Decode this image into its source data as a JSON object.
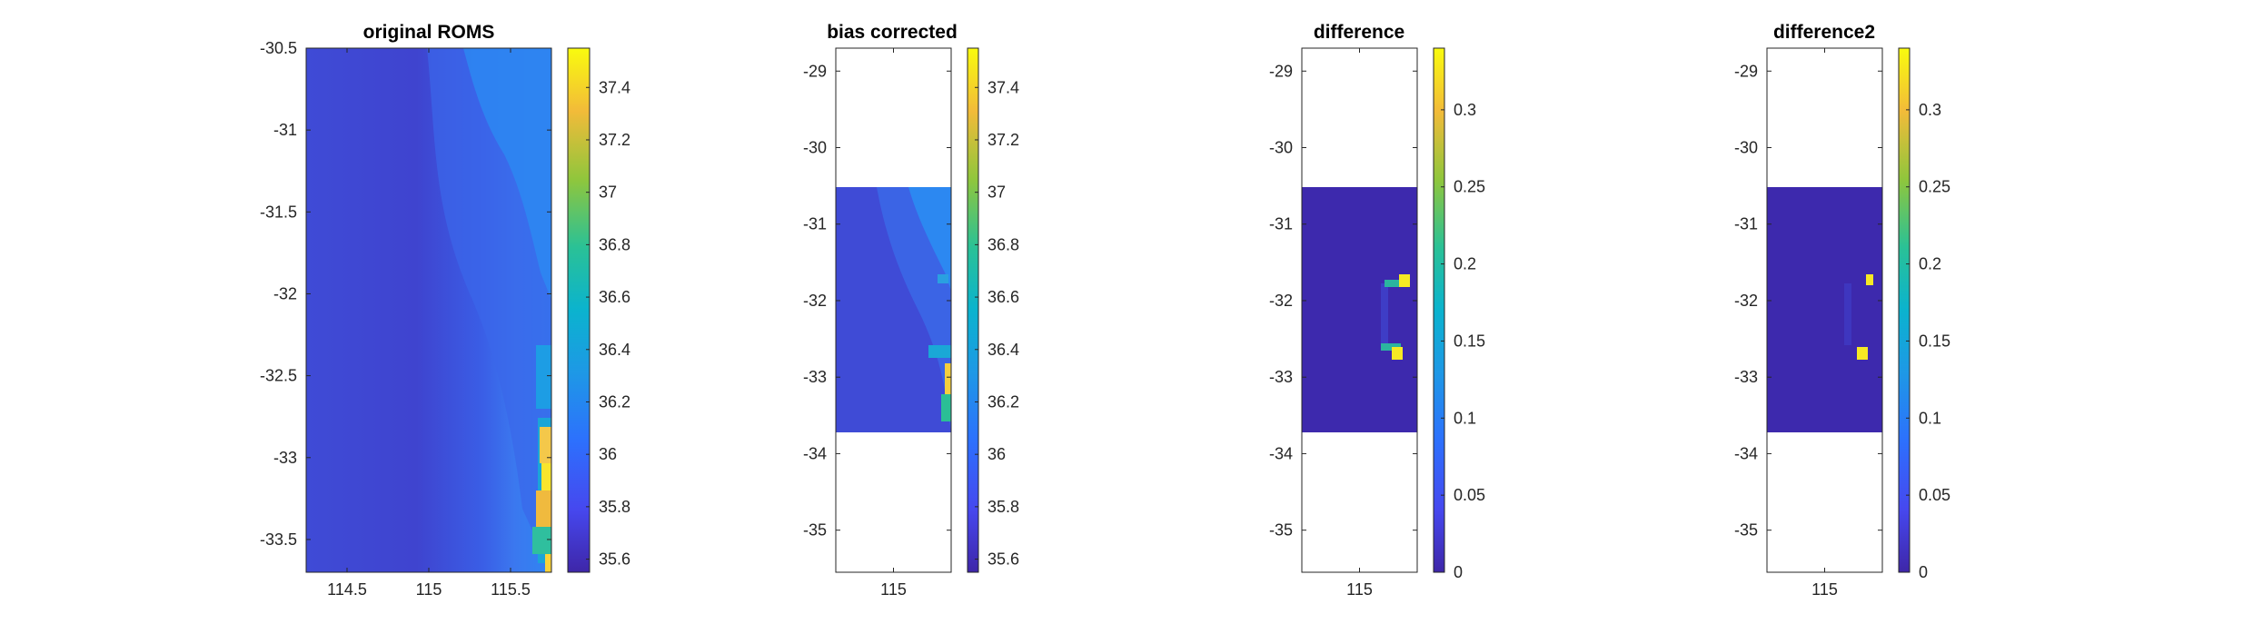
{
  "colors": {
    "axis": "#262626",
    "background": "#ffffff",
    "colormap": "parula"
  },
  "chart_data": [
    {
      "type": "heatmap",
      "title": "original ROMS",
      "xlim": [
        114.25,
        115.75
      ],
      "ylim": [
        -33.7,
        -30.5
      ],
      "xticks": [
        114.5,
        115,
        115.5
      ],
      "yticks": [
        -30.5,
        -31,
        -31.5,
        -32,
        -32.5,
        -33,
        -33.5
      ],
      "field": "salinity",
      "data_extent": {
        "x": [
          114.25,
          115.75
        ],
        "y": [
          -33.7,
          -30.5
        ]
      },
      "colorbar": {
        "clim": [
          35.55,
          37.55
        ],
        "ticks": [
          35.6,
          35.8,
          36,
          36.2,
          36.4,
          36.6,
          36.8,
          37,
          37.2,
          37.4
        ]
      },
      "features": [
        "coastal gradient along eastern edge",
        "high values ~37.4 near x 115.7, y -33 to -33.5"
      ]
    },
    {
      "type": "heatmap",
      "title": "bias corrected",
      "xlim": [
        114.65,
        115.35
      ],
      "ylim": [
        -35.55,
        -28.7
      ],
      "xticks": [
        115
      ],
      "yticks": [
        -29,
        -30,
        -31,
        -32,
        -33,
        -34,
        -35
      ],
      "field": "salinity",
      "data_extent": {
        "x": [
          114.65,
          115.35
        ],
        "y": [
          -33.7,
          -30.5
        ]
      },
      "colorbar": {
        "clim": [
          35.55,
          37.55
        ],
        "ticks": [
          35.6,
          35.8,
          36,
          36.2,
          36.4,
          36.6,
          36.8,
          37,
          37.2,
          37.4
        ]
      }
    },
    {
      "type": "heatmap",
      "title": "difference",
      "xlim": [
        114.65,
        115.35
      ],
      "ylim": [
        -35.55,
        -28.7
      ],
      "xticks": [
        115
      ],
      "yticks": [
        -29,
        -30,
        -31,
        -32,
        -33,
        -34,
        -35
      ],
      "data_extent": {
        "x": [
          114.65,
          115.35
        ],
        "y": [
          -33.7,
          -30.5
        ]
      },
      "colorbar": {
        "clim": [
          0,
          0.34
        ],
        "ticks": [
          0,
          0.05,
          0.1,
          0.15,
          0.2,
          0.25,
          0.3
        ]
      },
      "features": [
        "background 0",
        "values up to ~0.34 near (115.27,-31.7) and (115.22,-32.6)"
      ]
    },
    {
      "type": "heatmap",
      "title": "difference2",
      "xlim": [
        114.65,
        115.35
      ],
      "ylim": [
        -35.55,
        -28.7
      ],
      "xticks": [
        115
      ],
      "yticks": [
        -29,
        -30,
        -31,
        -32,
        -33,
        -34,
        -35
      ],
      "data_extent": {
        "x": [
          114.65,
          115.35
        ],
        "y": [
          -33.7,
          -30.5
        ]
      },
      "colorbar": {
        "clim": [
          0,
          0.34
        ],
        "ticks": [
          0,
          0.05,
          0.1,
          0.15,
          0.2,
          0.25,
          0.3
        ]
      },
      "features": [
        "background 0",
        "values ~0.34 near (115.28,-31.7) and (115.22,-32.6)"
      ]
    }
  ]
}
